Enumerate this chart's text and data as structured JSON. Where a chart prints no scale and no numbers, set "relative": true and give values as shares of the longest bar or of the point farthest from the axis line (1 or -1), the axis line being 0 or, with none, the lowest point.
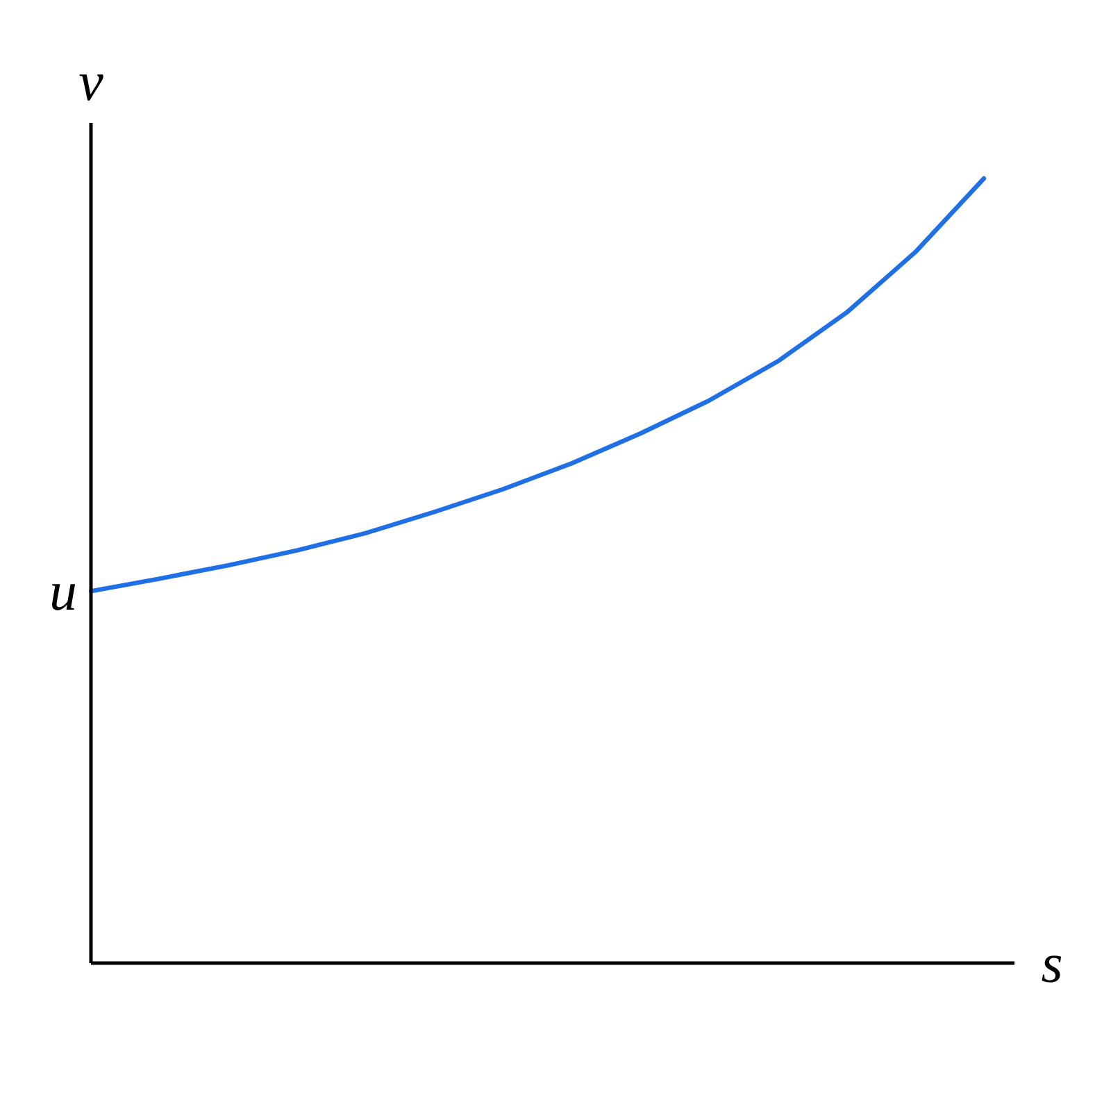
{
  "chart_data": {
    "type": "line",
    "relative": true,
    "xlabel": "s",
    "ylabel": "v",
    "categories": [
      null,
      null,
      null,
      null,
      null,
      null,
      null,
      null,
      null,
      null,
      null,
      null,
      null,
      null
    ],
    "series": [
      {
        "color": "#1f6fe5",
        "values": [
          0.474,
          0.49,
          0.507,
          0.526,
          0.548,
          0.575,
          0.604,
          0.637,
          0.675,
          0.717,
          0.767,
          0.829,
          0.906,
          1.0
        ]
      }
    ],
    "annotations": [
      "u"
    ]
  }
}
